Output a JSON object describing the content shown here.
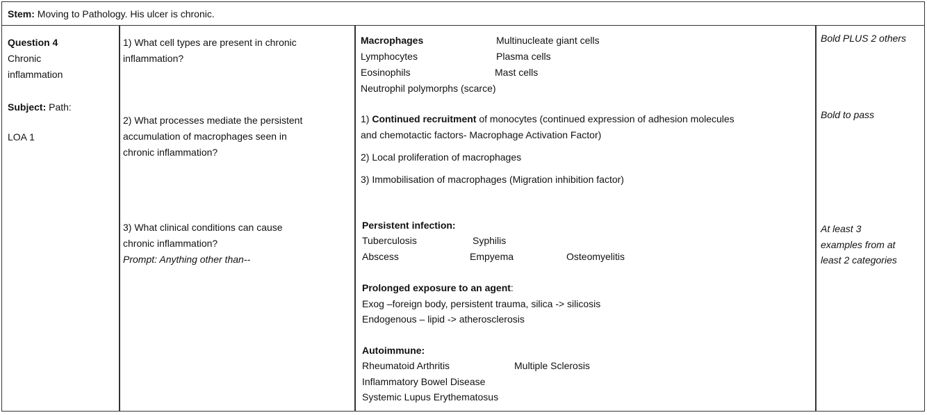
{
  "stem": {
    "label": "Stem:",
    "text": " Moving to Pathology. His ulcer is chronic."
  },
  "left": {
    "question": "Question 4",
    "topic1": "Chronic",
    "topic2": "inflammation",
    "subject_label": "Subject:",
    "subject_value": " Path:",
    "loa": "LOA 1"
  },
  "q1": {
    "q_l1": "1) What cell types are present in chronic",
    "q_l2": "inflammation?",
    "a": {
      "macrophages": "Macrophages",
      "giant": "Multinucleate giant cells",
      "lymph": "Lymphocytes",
      "plasma": "Plasma cells",
      "eos": "Eosinophils",
      "mast": "Mast cells",
      "neut": "Neutrophil polymorphs (scarce)"
    },
    "crit": "Bold PLUS 2 others"
  },
  "q2": {
    "q_l1": "2) What processes mediate the persistent",
    "q_l2": "accumulation of macrophages seen in",
    "q_l3": "chronic inflammation?",
    "a1_pre": "1) ",
    "a1_bold": "Continued recruitment",
    "a1_rest": " of monocytes (continued expression of adhesion molecules",
    "a1_l2": "and chemotactic factors- Macrophage Activation Factor)",
    "a2": "2) Local proliferation of macrophages",
    "a3": "3) Immobilisation of macrophages (Migration inhibition factor)",
    "crit": "Bold to pass"
  },
  "q3": {
    "q_l1": "3) What clinical conditions can cause",
    "q_l2": "chronic inflammation?",
    "prompt": "Prompt: Anything other than--",
    "inf_head": "Persistent infection:",
    "tb": "Tuberculosis",
    "syph": "Syphilis",
    "abscess": "Abscess",
    "empyema": "Empyema",
    "osteo": "Osteomyelitis",
    "exp_head": "Prolonged exposure to an agent",
    "exp_colon": ":",
    "exog": "Exog –foreign body, persistent trauma, silica -> silicosis",
    "endog": "Endogenous – lipid -> atherosclerosis",
    "auto_head": "Autoimmune:",
    "ra": "Rheumatoid Arthritis",
    "ms": "Multiple Sclerosis",
    "ibd": "Inflammatory Bowel Disease",
    "sle": "Systemic Lupus Erythematosus",
    "crit_l1": "At least 3",
    "crit_l2": "examples from at",
    "crit_l3": "least 2 categories"
  }
}
